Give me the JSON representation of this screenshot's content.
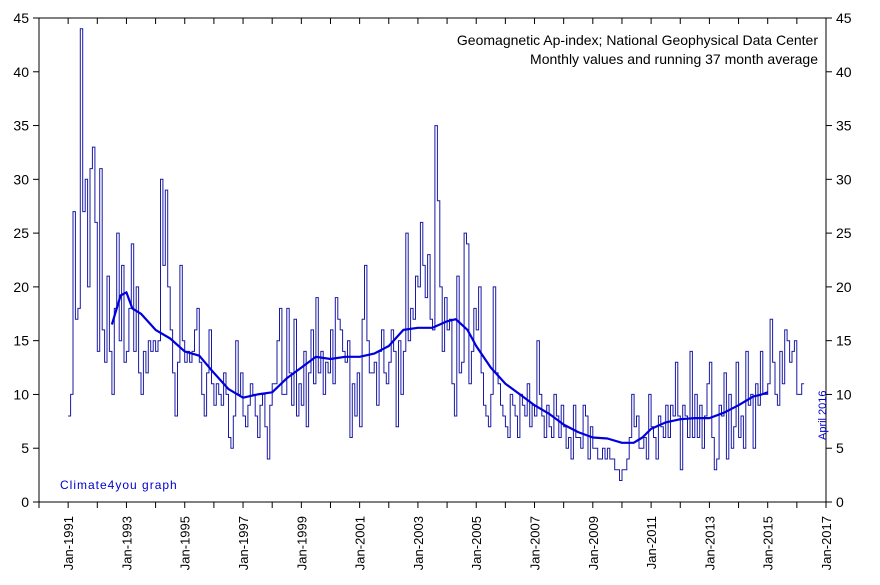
{
  "chart_data": {
    "type": "line",
    "title": "Geomagnetic Ap-index; National Geophysical Data Center",
    "subtitle": "Monthly values and running 37 month average",
    "watermark": "Climate4you graph",
    "annotation": "April 2016",
    "xlim": [
      1990,
      2017
    ],
    "ylim": [
      0,
      45
    ],
    "y_ticks": [
      0,
      5,
      10,
      15,
      20,
      25,
      30,
      35,
      40,
      45
    ],
    "x_ticks": [
      {
        "value": 1991,
        "label": "Jan-1991"
      },
      {
        "value": 1993,
        "label": "Jan-1993"
      },
      {
        "value": 1995,
        "label": "Jan-1995"
      },
      {
        "value": 1997,
        "label": "Jan-1997"
      },
      {
        "value": 1999,
        "label": "Jan-1999"
      },
      {
        "value": 2001,
        "label": "Jan-2001"
      },
      {
        "value": 2003,
        "label": "Jan-2003"
      },
      {
        "value": 2005,
        "label": "Jan-2005"
      },
      {
        "value": 2007,
        "label": "Jan-2007"
      },
      {
        "value": 2009,
        "label": "Jan-2009"
      },
      {
        "value": 2011,
        "label": "Jan-2011"
      },
      {
        "value": 2013,
        "label": "Jan-2013"
      },
      {
        "value": 2015,
        "label": "Jan-2015"
      },
      {
        "value": 2017,
        "label": "Jan-2017"
      }
    ],
    "colors": {
      "monthly": "#1a1aa6",
      "average": "#0000dd",
      "text_blue": "#0000cc",
      "axis": "#000000"
    },
    "series": [
      {
        "key": "monthly",
        "x_start": 1991.0,
        "x_step": 0.083333,
        "values": [
          8,
          10,
          27,
          17,
          18,
          44,
          27,
          30,
          20,
          31,
          33,
          26,
          14,
          31,
          16,
          13,
          21,
          14,
          10,
          18,
          25,
          15,
          22,
          13,
          14,
          18,
          24,
          14,
          20,
          12,
          10,
          14,
          12,
          15,
          14,
          15,
          14,
          15,
          30,
          22,
          29,
          20,
          16,
          12,
          8,
          13,
          22,
          15,
          13,
          14,
          13,
          14,
          16,
          18,
          13,
          10,
          8,
          12,
          16,
          11,
          9,
          11,
          10,
          9,
          12,
          10,
          6,
          5,
          8,
          15,
          10,
          12,
          8,
          7,
          9,
          11,
          10,
          8,
          6,
          9,
          10,
          7,
          4,
          9,
          11,
          11,
          15,
          18,
          10,
          10,
          18,
          12,
          9,
          17,
          8,
          11,
          9,
          14,
          7,
          12,
          16,
          11,
          19,
          12,
          14,
          10,
          13,
          12,
          16,
          11,
          19,
          17,
          16,
          14,
          13,
          15,
          6,
          11,
          8,
          12,
          7,
          17,
          22,
          15,
          12,
          12,
          13,
          9,
          14,
          16,
          12,
          11,
          13,
          16,
          14,
          7,
          15,
          10,
          14,
          25,
          15,
          18,
          17,
          21,
          20,
          26,
          22,
          19,
          23,
          17,
          16,
          35,
          28,
          20,
          14,
          19,
          16,
          17,
          11,
          8,
          21,
          12,
          13,
          25,
          24,
          11,
          14,
          18,
          16,
          20,
          12,
          9,
          8,
          7,
          10,
          20,
          12,
          11,
          9,
          8,
          7,
          6,
          10,
          9,
          8,
          6,
          10,
          9,
          8,
          11,
          7,
          9,
          8,
          15,
          10,
          8,
          6,
          9,
          7,
          6,
          10,
          8,
          6,
          9,
          7,
          5,
          6,
          4,
          9,
          6,
          6,
          5,
          9,
          8,
          4,
          7,
          5,
          5,
          4,
          4,
          5,
          4,
          5,
          4,
          4,
          3,
          3,
          2,
          3,
          3,
          4,
          6,
          10,
          7,
          8,
          5,
          5,
          6,
          4,
          10,
          7,
          6,
          4,
          8,
          7,
          6,
          9,
          6,
          9,
          8,
          13,
          8,
          3,
          9,
          8,
          6,
          14,
          6,
          10,
          6,
          9,
          5,
          8,
          11,
          13,
          6,
          3,
          4,
          9,
          8,
          12,
          4,
          10,
          5,
          7,
          13,
          6,
          8,
          5,
          14,
          9,
          10,
          5,
          11,
          9,
          14,
          10,
          10,
          11,
          17,
          13,
          10,
          9,
          14,
          11,
          16,
          15,
          13,
          14,
          15,
          10,
          10,
          11
        ]
      },
      {
        "key": "average",
        "points": [
          [
            1992.5,
            16.5
          ],
          [
            1992.8,
            19.2
          ],
          [
            1993.0,
            19.5
          ],
          [
            1993.2,
            18.0
          ],
          [
            1993.5,
            17.5
          ],
          [
            1994.0,
            16.0
          ],
          [
            1994.5,
            15.2
          ],
          [
            1995.0,
            14.0
          ],
          [
            1995.5,
            13.6
          ],
          [
            1996.0,
            12.0
          ],
          [
            1996.5,
            10.5
          ],
          [
            1997.0,
            9.7
          ],
          [
            1997.5,
            10.0
          ],
          [
            1998.0,
            10.2
          ],
          [
            1998.5,
            11.5
          ],
          [
            1999.0,
            12.5
          ],
          [
            1999.5,
            13.5
          ],
          [
            2000.0,
            13.3
          ],
          [
            2000.5,
            13.5
          ],
          [
            2001.0,
            13.5
          ],
          [
            2001.5,
            13.8
          ],
          [
            2002.0,
            14.5
          ],
          [
            2002.5,
            16.0
          ],
          [
            2003.0,
            16.2
          ],
          [
            2003.5,
            16.2
          ],
          [
            2004.0,
            16.8
          ],
          [
            2004.3,
            17.0
          ],
          [
            2004.7,
            16.0
          ],
          [
            2005.0,
            14.5
          ],
          [
            2005.5,
            12.5
          ],
          [
            2006.0,
            11.0
          ],
          [
            2006.5,
            10.0
          ],
          [
            2007.0,
            9.0
          ],
          [
            2007.5,
            8.2
          ],
          [
            2008.0,
            7.2
          ],
          [
            2008.5,
            6.5
          ],
          [
            2009.0,
            6.0
          ],
          [
            2009.5,
            5.9
          ],
          [
            2010.0,
            5.5
          ],
          [
            2010.4,
            5.5
          ],
          [
            2010.7,
            6.0
          ],
          [
            2011.0,
            6.8
          ],
          [
            2011.5,
            7.4
          ],
          [
            2012.0,
            7.7
          ],
          [
            2012.5,
            7.8
          ],
          [
            2013.0,
            7.8
          ],
          [
            2013.5,
            8.3
          ],
          [
            2014.0,
            9.0
          ],
          [
            2014.5,
            9.8
          ],
          [
            2014.8,
            10.0
          ],
          [
            2015.0,
            10.2
          ]
        ]
      }
    ]
  }
}
